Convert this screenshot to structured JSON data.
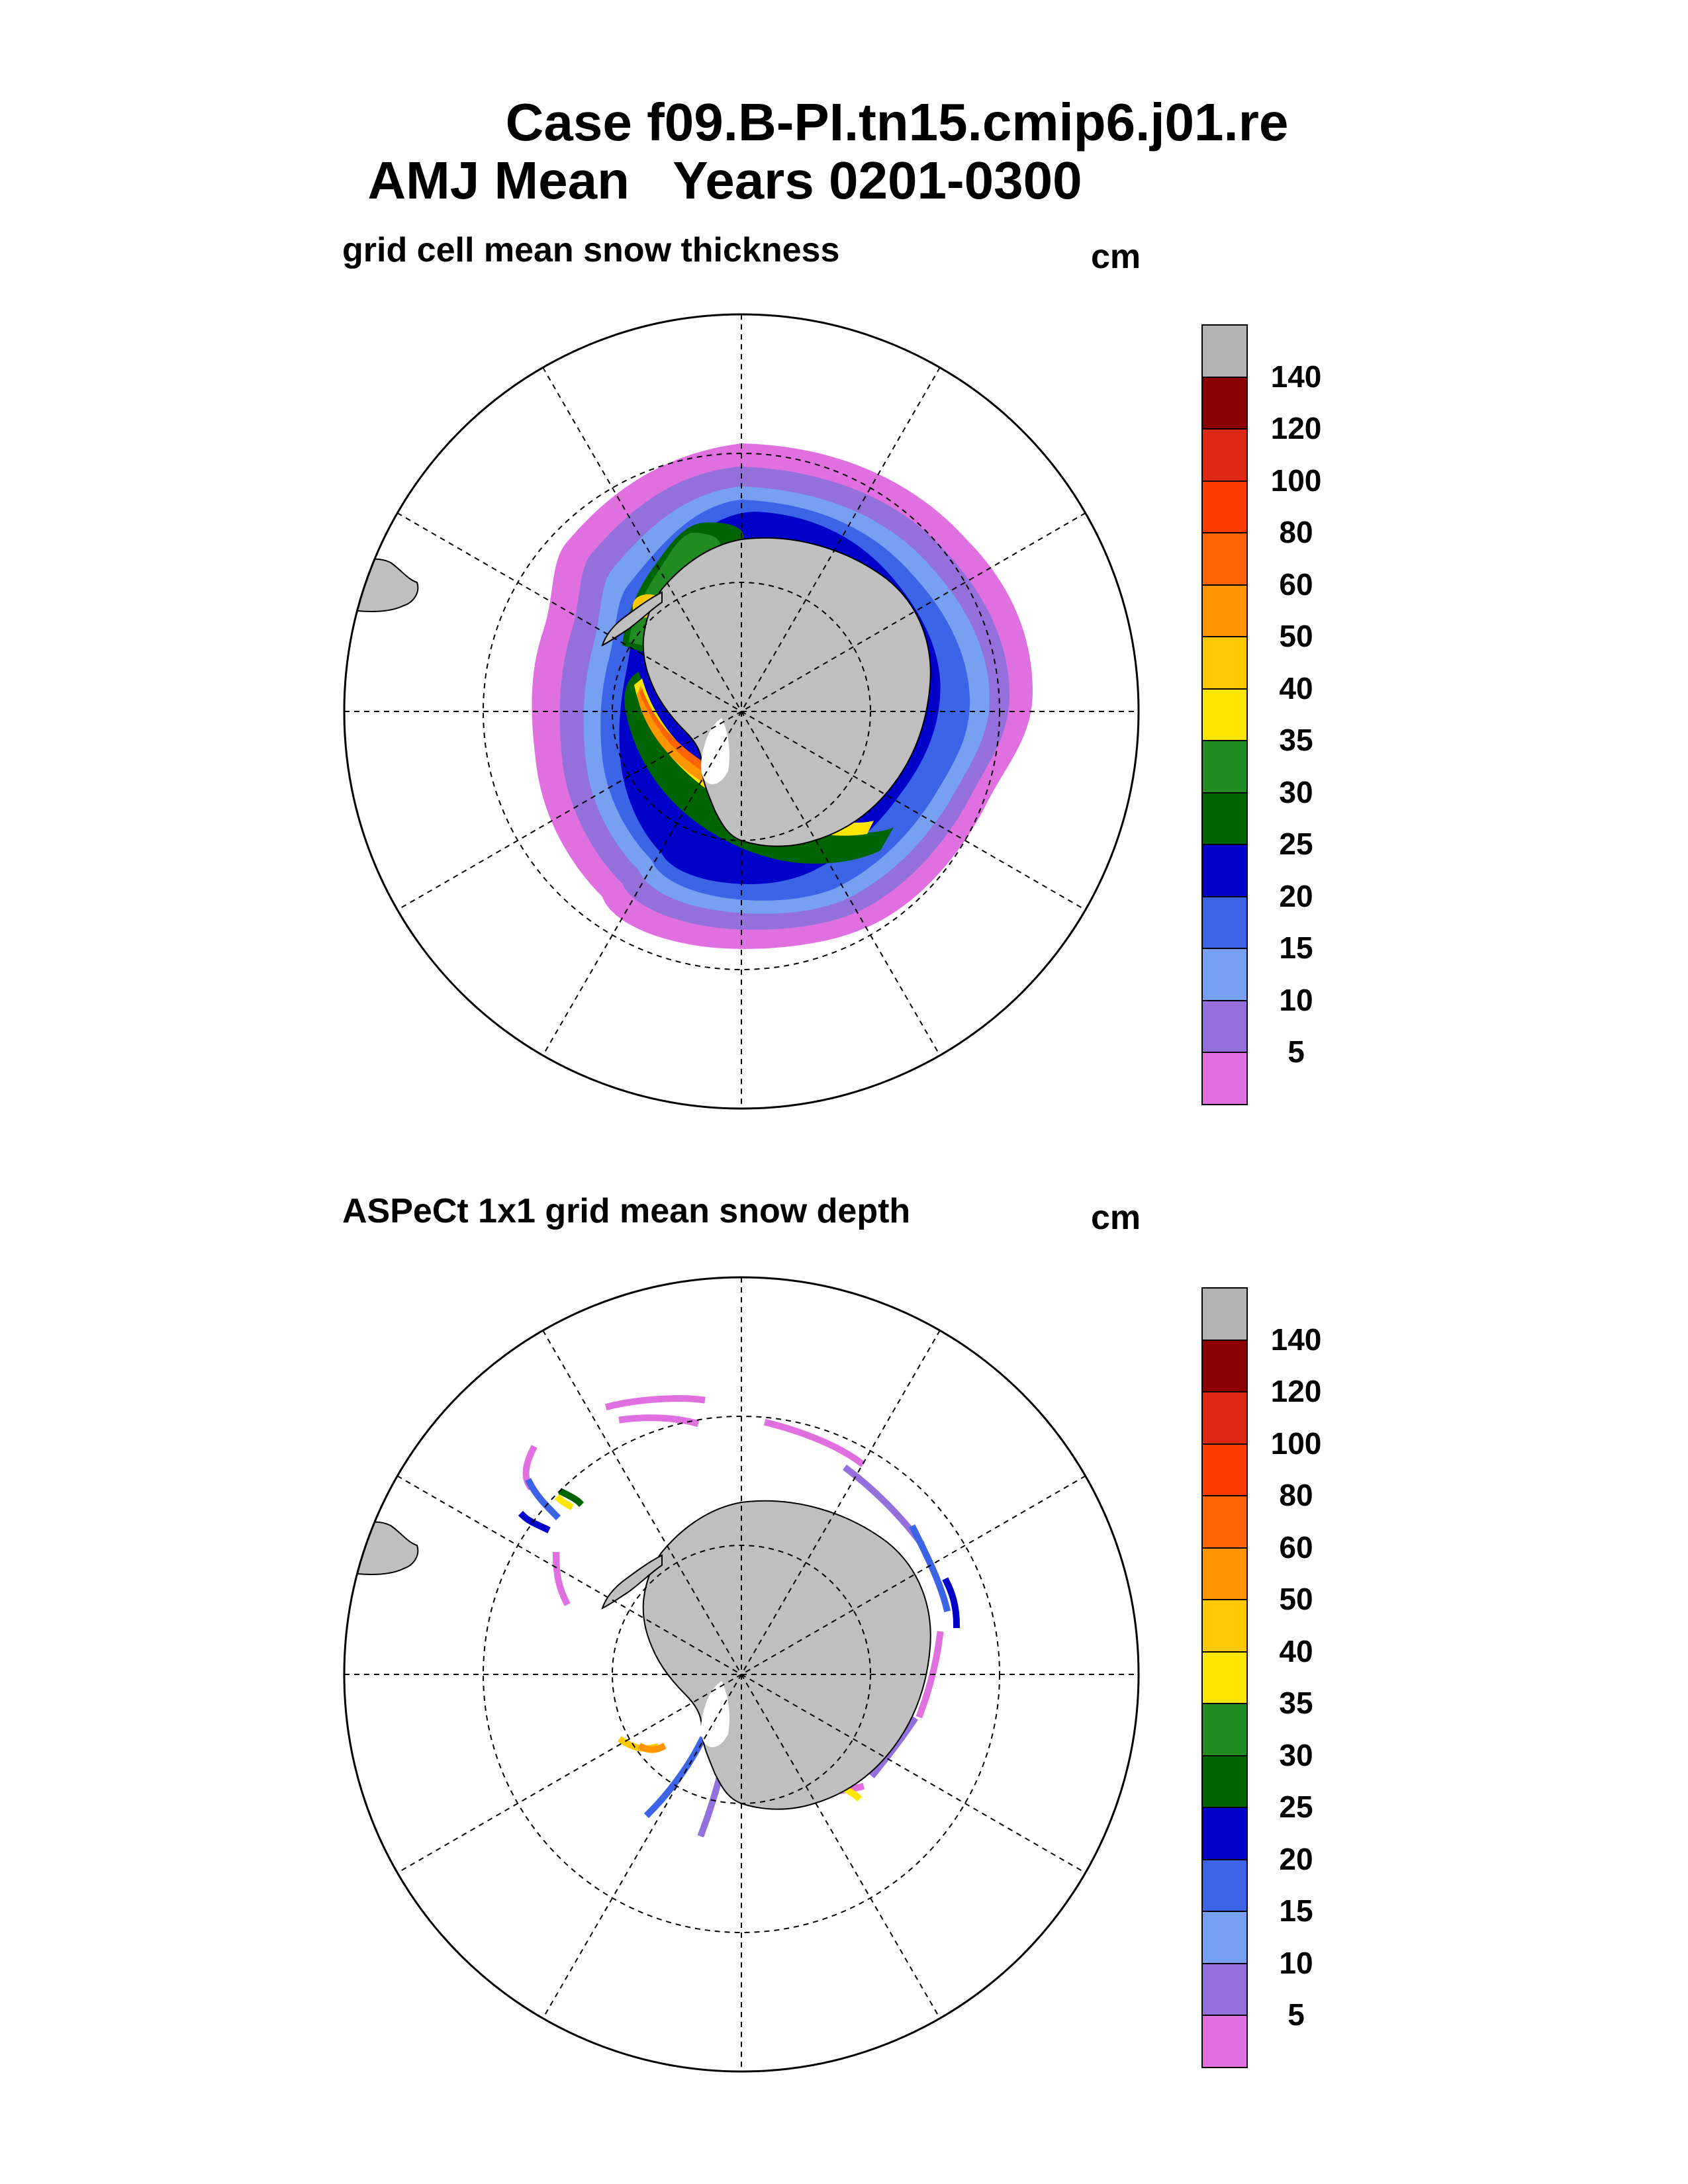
{
  "title": {
    "line1": "Case f09.B-PI.tn15.cmip6.j01.re",
    "line2": "AMJ Mean   Years 0201-0300"
  },
  "panels": [
    {
      "id": "model",
      "title": "grid cell mean snow thickness",
      "units": "cm"
    },
    {
      "id": "obs",
      "title": "ASPeCt 1x1 grid mean snow depth",
      "units": "cm"
    }
  ],
  "colorbar": {
    "labels": [
      "140",
      "120",
      "100",
      "80",
      "60",
      "50",
      "40",
      "35",
      "30",
      "25",
      "20",
      "15",
      "10",
      "5"
    ],
    "colors": [
      "#b4b4b4",
      "#8b0000",
      "#dc2814",
      "#ff3c00",
      "#ff6400",
      "#ff9600",
      "#ffc800",
      "#ffe600",
      "#228b22",
      "#006400",
      "#0000c8",
      "#3c64e6",
      "#78a0f0",
      "#9370db",
      "#e070e0"
    ]
  },
  "map_style": {
    "land": "#bfbfbf",
    "graticule": "dashed"
  }
}
